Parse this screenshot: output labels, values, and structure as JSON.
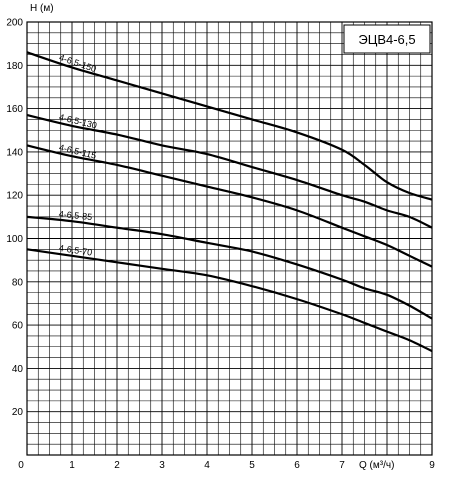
{
  "chart_data": {
    "type": "line",
    "title": "ЭЦВ4-6,5",
    "xlabel": "Q (м³/ч)",
    "ylabel": "H (м)",
    "xlim": [
      0,
      9
    ],
    "ylim": [
      0,
      200
    ],
    "grid": true,
    "x_ticks": [
      "0",
      "1",
      "2",
      "3",
      "4",
      "5",
      "6",
      "7",
      "9"
    ],
    "y_ticks": [
      "20",
      "40",
      "60",
      "80",
      "100",
      "120",
      "140",
      "160",
      "180",
      "200"
    ],
    "series": [
      {
        "name": "4-6,5-150",
        "x": [
          0,
          1,
          2,
          3,
          4,
          5,
          6,
          7,
          7.5,
          8,
          8.5,
          9
        ],
        "values": [
          186,
          179,
          173,
          167,
          161,
          155,
          149,
          141,
          134,
          126,
          121,
          118
        ]
      },
      {
        "name": "4-6,5-130",
        "x": [
          0,
          1,
          2,
          3,
          4,
          5,
          6,
          7,
          7.5,
          8,
          8.5,
          9
        ],
        "values": [
          157,
          152,
          148,
          143,
          139,
          133,
          127,
          120,
          117,
          113,
          110,
          105
        ]
      },
      {
        "name": "4-6,5-115",
        "x": [
          0,
          1,
          2,
          3,
          4,
          5,
          6,
          7,
          7.5,
          8,
          8.5,
          9
        ],
        "values": [
          143,
          138,
          134,
          129,
          124,
          119,
          113,
          105,
          101,
          97,
          92,
          87
        ]
      },
      {
        "name": "4-6,5-85",
        "x": [
          0,
          1,
          2,
          3,
          4,
          5,
          6,
          7,
          7.5,
          8,
          8.5,
          9
        ],
        "values": [
          110,
          108,
          105,
          102,
          98,
          94,
          88,
          81,
          77,
          74,
          69,
          63
        ]
      },
      {
        "name": "4-6,5-70",
        "x": [
          0,
          1,
          2,
          3,
          4,
          5,
          6,
          7,
          7.5,
          8,
          8.5,
          9
        ],
        "values": [
          95,
          92,
          89,
          86,
          83,
          78,
          72,
          65,
          61,
          57,
          53,
          48
        ]
      }
    ]
  }
}
